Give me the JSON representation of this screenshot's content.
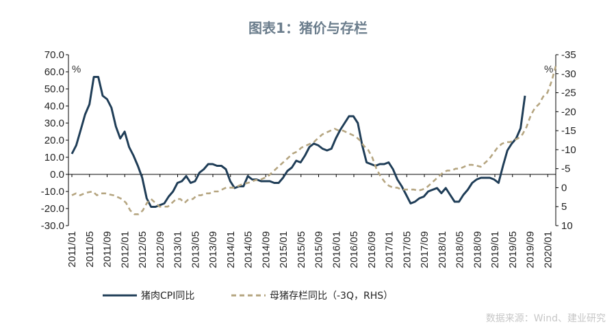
{
  "chart_data": {
    "type": "line",
    "title": "图表1：猪价与存栏",
    "y_unit_left": "%",
    "y_unit_right": "%",
    "ylim_left": [
      -30,
      70
    ],
    "yticks_left": [
      "70.0",
      "60.0",
      "50.0",
      "40.0",
      "30.0",
      "20.0",
      "10.0",
      "0.0",
      "-10.0",
      "-20.0",
      "-30.0"
    ],
    "ylim_right": [
      10,
      -35
    ],
    "yticks_right": [
      "-35",
      "-30",
      "-25",
      "-20",
      "-15",
      "-10",
      "-5",
      "0",
      "5",
      "10"
    ],
    "x_labels": [
      "2011/01",
      "2011/05",
      "2011/09",
      "2012/01",
      "2012/05",
      "2012/09",
      "2013/01",
      "2013/05",
      "2013/09",
      "2014/01",
      "2014/05",
      "2014/09",
      "2015/01",
      "2015/05",
      "2015/09",
      "2016/01",
      "2016/05",
      "2016/09",
      "2017/01",
      "2017/05",
      "2017/09",
      "2018/01",
      "2018/05",
      "2018/09",
      "2019/01",
      "2019/05",
      "2019/09",
      "2020/01"
    ],
    "series": [
      {
        "name": "猪肉CPI同比",
        "axis": "left",
        "color": "#1f3d57",
        "style": "solid",
        "values": [
          12,
          17,
          26,
          35,
          41,
          57,
          57,
          46,
          44,
          39,
          28,
          21,
          25,
          16,
          11,
          5,
          -2,
          -14,
          -19,
          -19,
          -18,
          -17,
          -13,
          -10,
          -5,
          -4,
          -1,
          -5,
          -4,
          1,
          3,
          6,
          6,
          5,
          5,
          3,
          -4,
          -8,
          -7,
          -7,
          -1,
          -3,
          -3,
          -4,
          -4,
          -4,
          -5,
          -5,
          -2,
          2,
          4,
          8,
          7,
          11,
          16,
          18,
          17,
          15,
          14,
          15,
          21,
          26,
          30,
          34,
          34,
          30,
          17,
          7,
          6,
          5,
          6,
          6,
          7,
          3,
          -3,
          -7,
          -12,
          -17,
          -16,
          -14,
          -13,
          -10,
          -9,
          -8,
          -11,
          -8,
          -12,
          -16,
          -16,
          -12,
          -9,
          -5,
          -3,
          -2,
          -2,
          -2,
          -3,
          -5,
          5,
          14,
          18,
          21,
          27,
          46
        ]
      },
      {
        "name": "母猪存栏同比（-3Q，RHS）",
        "axis": "right",
        "color": "#b5a580",
        "style": "dashed",
        "values": [
          2,
          1.5,
          2,
          1.5,
          1.2,
          1,
          2,
          1.5,
          1.5,
          1.8,
          2,
          2.5,
          3,
          4,
          6,
          7,
          7,
          6,
          4,
          3,
          4,
          5,
          5,
          5,
          4,
          3,
          3,
          4,
          3,
          3,
          2,
          2,
          1.5,
          1.5,
          1,
          1,
          0.5,
          0,
          0,
          0,
          -0.5,
          -1,
          -1.2,
          -1.5,
          -2,
          -2,
          -2.5,
          -3,
          -4,
          -5,
          -6,
          -7,
          -8,
          -9,
          -9.5,
          -10.5,
          -11,
          -11.5,
          -12,
          -13,
          -14,
          -14.5,
          -15,
          -15.5,
          -15,
          -15,
          -14.5,
          -14,
          -13.5,
          -12.5,
          -11,
          -10,
          -8,
          -5,
          -3,
          -1.5,
          -0.5,
          0,
          0,
          0.5,
          0.5,
          0.5,
          0.5,
          0.8,
          0.5,
          0,
          -1,
          -2,
          -3,
          -4,
          -4.5,
          -4.5,
          -5,
          -5,
          -5.5,
          -6,
          -6,
          -5.8,
          -5.5,
          -6.5,
          -7.5,
          -9,
          -10.5,
          -11.5,
          -12,
          -12,
          -12.5,
          -13,
          -14,
          -16,
          -19,
          -21,
          -22,
          -24,
          -25,
          -28,
          -32
        ]
      }
    ]
  },
  "watermark": "数据来源：Wind、建业研究"
}
